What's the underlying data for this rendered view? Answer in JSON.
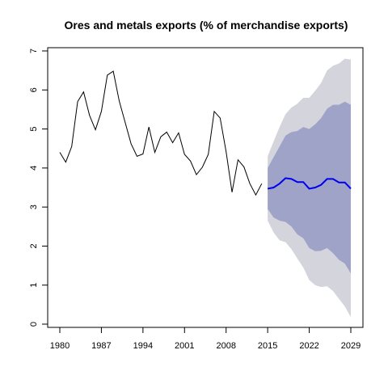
{
  "chart_data": {
    "type": "line",
    "title": "Ores and metals exports (% of merchandise exports)",
    "xlabel": "",
    "ylabel": "",
    "xlim": [
      1980,
      2029
    ],
    "ylim": [
      0,
      7
    ],
    "x_ticks": [
      1980,
      1987,
      1994,
      2001,
      2008,
      2015,
      2022,
      2029
    ],
    "y_ticks": [
      0,
      1,
      2,
      3,
      4,
      5,
      6,
      7
    ],
    "grid": false,
    "legend": "none",
    "colors": {
      "history": "#000000",
      "forecast_mean": "#0000ee",
      "band_80": "#a0a3c8",
      "band_95": "#d4d4dc"
    },
    "history": {
      "x": [
        1980,
        1981,
        1982,
        1983,
        1984,
        1985,
        1986,
        1987,
        1988,
        1989,
        1990,
        1991,
        1992,
        1993,
        1994,
        1995,
        1996,
        1997,
        1998,
        1999,
        2000,
        2001,
        2002,
        2003,
        2004,
        2005,
        2006,
        2007,
        2008,
        2009,
        2010,
        2011,
        2012,
        2013,
        2014
      ],
      "y": [
        4.4,
        4.15,
        4.55,
        5.7,
        5.95,
        5.35,
        4.98,
        5.45,
        6.38,
        6.48,
        5.72,
        5.17,
        4.62,
        4.3,
        4.36,
        5.05,
        4.4,
        4.8,
        4.92,
        4.65,
        4.9,
        4.35,
        4.18,
        3.83,
        4.02,
        4.35,
        5.45,
        5.28,
        4.42,
        3.38,
        4.21,
        4.03,
        3.6,
        3.31,
        3.6
      ]
    },
    "forecast": {
      "x": [
        2015,
        2016,
        2017,
        2018,
        2019,
        2020,
        2021,
        2022,
        2023,
        2024,
        2025,
        2026,
        2027,
        2028,
        2029
      ],
      "mean": [
        3.47,
        3.5,
        3.6,
        3.74,
        3.72,
        3.64,
        3.64,
        3.47,
        3.5,
        3.57,
        3.72,
        3.72,
        3.63,
        3.63,
        3.47
      ],
      "lo80": [
        2.95,
        2.73,
        2.65,
        2.62,
        2.5,
        2.3,
        2.2,
        1.95,
        1.87,
        1.88,
        1.95,
        1.82,
        1.65,
        1.55,
        1.3
      ],
      "hi80": [
        4.0,
        4.28,
        4.55,
        4.83,
        4.92,
        4.95,
        5.05,
        5.0,
        5.12,
        5.28,
        5.52,
        5.62,
        5.62,
        5.7,
        5.62
      ],
      "lo95": [
        2.65,
        2.35,
        2.15,
        2.1,
        1.92,
        1.68,
        1.45,
        1.13,
        1.0,
        0.95,
        0.97,
        0.85,
        0.65,
        0.45,
        0.18
      ],
      "hi95": [
        4.3,
        4.68,
        5.05,
        5.38,
        5.55,
        5.65,
        5.8,
        5.8,
        5.98,
        6.18,
        6.5,
        6.62,
        6.68,
        6.8,
        6.78
      ]
    }
  }
}
